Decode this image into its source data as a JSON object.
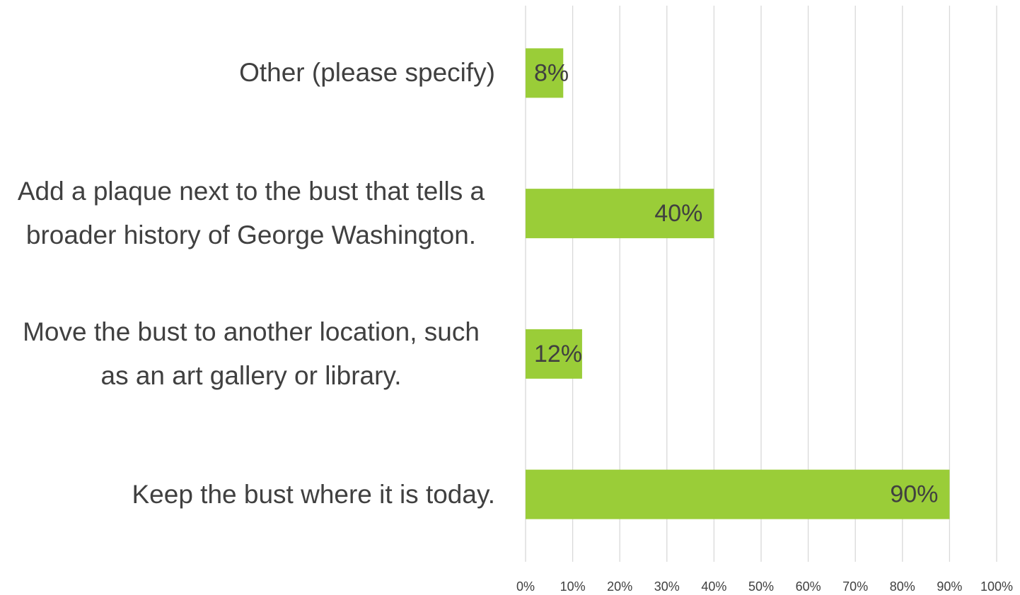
{
  "chart_data": {
    "type": "bar",
    "orientation": "horizontal",
    "categories": [
      "Other (please specify)",
      "Add a plaque next to the bust that tells a broader history of George Washington.",
      "Move the bust to another location, such as an art gallery or library.",
      "Keep the bust where it is today."
    ],
    "values": [
      8,
      40,
      12,
      90
    ],
    "value_labels": [
      "8%",
      "40%",
      "12%",
      "90%"
    ],
    "color": "#9acd38",
    "xlim": [
      0,
      100
    ],
    "xticks": [
      {
        "value": 0,
        "label": "0%"
      },
      {
        "value": 10,
        "label": "10%"
      },
      {
        "value": 20,
        "label": "20%"
      },
      {
        "value": 30,
        "label": "30%"
      },
      {
        "value": 40,
        "label": "40%"
      },
      {
        "value": 50,
        "label": "50%"
      },
      {
        "value": 60,
        "label": "60%"
      },
      {
        "value": 70,
        "label": "70%"
      },
      {
        "value": 80,
        "label": "80%"
      },
      {
        "value": 90,
        "label": "90%"
      },
      {
        "value": 100,
        "label": "100%"
      }
    ],
    "grid": true
  }
}
